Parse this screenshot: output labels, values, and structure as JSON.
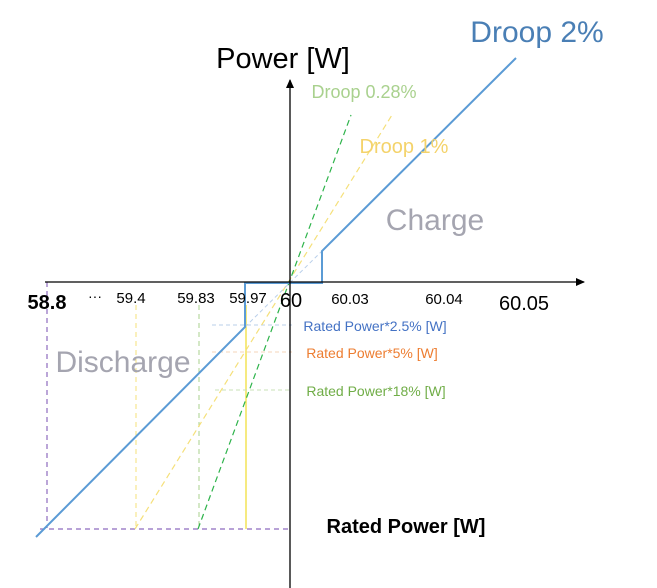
{
  "labels": {
    "y_axis_title": "Power [W]",
    "droop_2": "Droop 2%",
    "droop_028": "Droop 0.28%",
    "droop_1": "Droop 1%",
    "charge": "Charge",
    "discharge": "Discharge",
    "rated_power": "Rated Power [W]",
    "ellipsis": "···",
    "rated_25": "Rated Power*2.5% [W]",
    "rated_5": "Rated Power*5% [W]",
    "rated_18": "Rated Power*18% [W]"
  },
  "x_ticks": {
    "t_58_8": "58.8",
    "t_59_4": "59.4",
    "t_59_83": "59.83",
    "t_59_97": "59.97",
    "t_60": "60",
    "t_60_03": "60.03",
    "t_60_04": "60.04",
    "t_60_05": "60.05"
  },
  "colors": {
    "droop_2": "#5b9bd5",
    "droop_2_text": "#4a7fb5",
    "droop_028": "#2db34a",
    "droop_028_text": "#a9d18e",
    "droop_1": "#f5e07a",
    "droop_1_text": "#f4d36b",
    "rated_5_text": "#ed7d31",
    "rated_18_text": "#70ad47",
    "rated_25_text": "#4472c4",
    "region_text": "#a5a5b0",
    "guide_purple": "#8e6bbf",
    "axis": "#000000"
  }
}
